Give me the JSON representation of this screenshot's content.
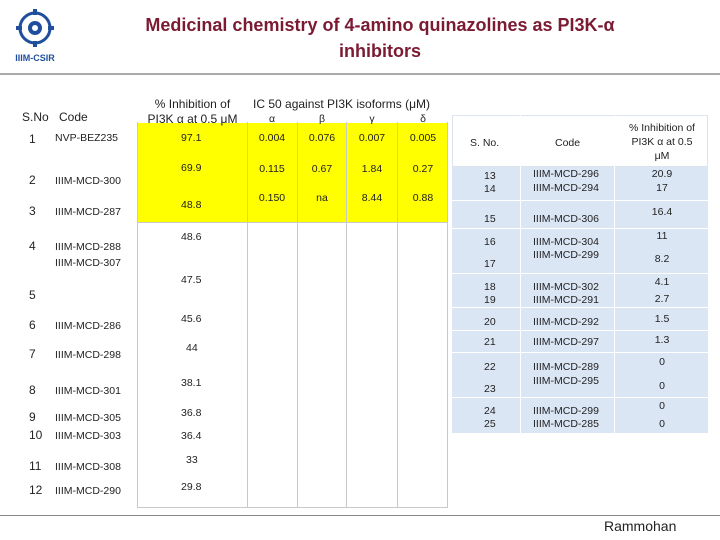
{
  "header": {
    "title_line1": "Medicinal chemistry of 4-amino quinazolines as PI3K-α",
    "title_line2": "inhibitors",
    "logo_text": "IIIM-CSIR"
  },
  "left_table": {
    "col_sno": "S.No",
    "col_code": "Code",
    "col_pct_line1": "% Inhibition of",
    "col_pct_line2": "PI3K α at 0.5 μM",
    "col_ic50": "IC 50 against PI3K isoforms (μM)",
    "iso_alpha": "α",
    "iso_beta": "β",
    "iso_gamma": "γ",
    "iso_delta": "δ",
    "sno": [
      "1",
      "2",
      "3",
      "4",
      "5",
      "6",
      "7",
      "8",
      "9",
      "10",
      "11",
      "12"
    ],
    "codes": [
      "NVP-BEZ235",
      "IIIM-MCD-300",
      "IIIM-MCD-287",
      "IIIM-MCD-288",
      "IIIM-MCD-307",
      "IIIM-MCD-286",
      "IIIM-MCD-298",
      "IIIM-MCD-301",
      "IIIM-MCD-305",
      "IIIM-MCD-303",
      "IIIM-MCD-308",
      "IIIM-MCD-290"
    ],
    "pct": [
      "97.1",
      "69.9",
      "48.8",
      "48.6",
      "47.5",
      "45.6",
      "44",
      "38.1",
      "36.8",
      "36.4",
      "33",
      "29.8"
    ],
    "ic50_rows": [
      [
        "0.004",
        "0.076",
        "0.007",
        "0.005"
      ],
      [
        "0.115",
        "0.67",
        "1.84",
        "0.27"
      ],
      [
        "0.150",
        "na",
        "8.44",
        "0.88"
      ]
    ]
  },
  "right_table": {
    "col_sno": "S. No.",
    "col_code": "Code",
    "col_pct_line1": "% Inhibition of",
    "col_pct_line2": "PI3K α at 0.5",
    "col_pct_line3": "μM",
    "sno": [
      "13",
      "14",
      "15",
      "16",
      "17",
      "18",
      "19",
      "20",
      "21",
      "22",
      "23",
      "24",
      "25"
    ],
    "codes": [
      "IIIM-MCD-296",
      "IIIM-MCD-294",
      "IIIM-MCD-306",
      "IIIM-MCD-304",
      "IIIM-MCD-299",
      "IIIM-MCD-302",
      "IIIM-MCD-291",
      "IIIM-MCD-292",
      "IIIM-MCD-297",
      "IIIM-MCD-289",
      "IIIM-MCD-295",
      "IIIM-MCD-299",
      "IIIM-MCD-285"
    ],
    "pct": [
      "20.9",
      "17",
      "16.4",
      "11",
      "8.2",
      "4.1",
      "2.7",
      "1.5",
      "1.3",
      "0",
      "0",
      "0",
      "0"
    ]
  },
  "footer": {
    "author": "Rammohan"
  },
  "colors": {
    "title": "#7a1a33",
    "highlight": "#ffff00",
    "table_fill": "#dbe6f5"
  }
}
